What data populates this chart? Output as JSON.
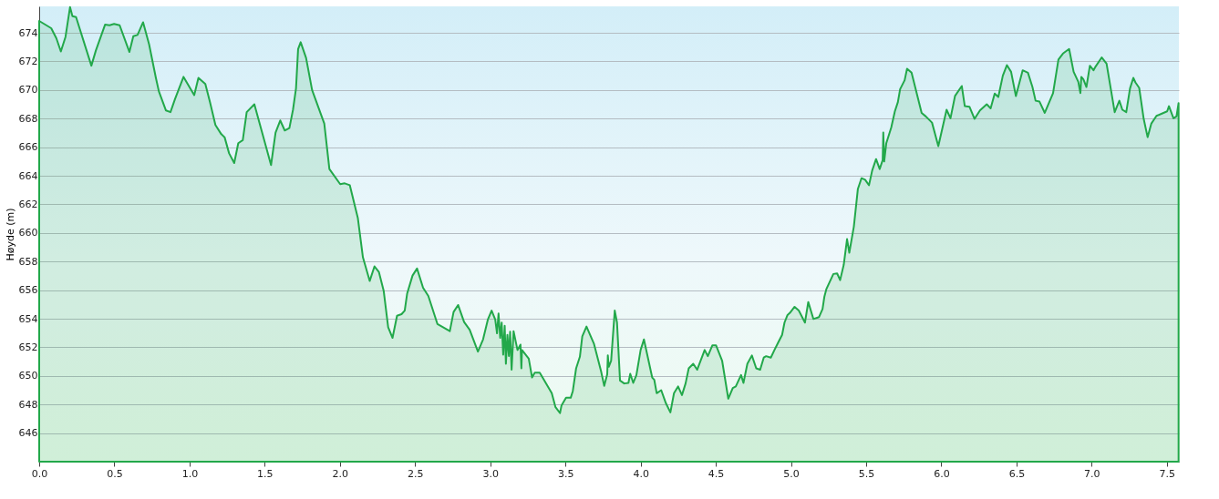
{
  "chart_data": {
    "type": "area",
    "ylabel": "Høyde (m)",
    "xlim": [
      0,
      7.58
    ],
    "ylim": [
      644,
      675.85
    ],
    "xticks": [
      {
        "value": 0,
        "label": "0.0"
      },
      {
        "value": 0.5,
        "label": "0.5"
      },
      {
        "value": 1,
        "label": "1.0"
      },
      {
        "value": 1.5,
        "label": "1.5"
      },
      {
        "value": 2,
        "label": "2.0"
      },
      {
        "value": 2.5,
        "label": "2.5"
      },
      {
        "value": 3,
        "label": "3.0"
      },
      {
        "value": 3.5,
        "label": "3.5"
      },
      {
        "value": 4,
        "label": "4.0"
      },
      {
        "value": 4.5,
        "label": "4.5"
      },
      {
        "value": 5,
        "label": "5.0"
      },
      {
        "value": 5.5,
        "label": "5.5"
      },
      {
        "value": 6,
        "label": "6.0"
      },
      {
        "value": 6.5,
        "label": "6.5"
      },
      {
        "value": 7,
        "label": "7.0"
      },
      {
        "value": 7.5,
        "label": "7.5"
      }
    ],
    "yticks": [
      646,
      648,
      650,
      652,
      654,
      656,
      658,
      660,
      662,
      664,
      666,
      668,
      670,
      672,
      674
    ],
    "grid": "y",
    "series": [
      {
        "color": "#22a84a",
        "x": [
          0,
          0.08,
          0.114,
          0.144,
          0.175,
          0.205,
          0.221,
          0.245,
          0.347,
          0.377,
          0.438,
          0.468,
          0.498,
          0.535,
          0.6,
          0.626,
          0.654,
          0.691,
          0.731,
          0.776,
          0.796,
          0.843,
          0.873,
          0.903,
          0.96,
          1.031,
          1.059,
          1.105,
          1.136,
          1.172,
          1.211,
          1.233,
          1.263,
          1.297,
          1.324,
          1.354,
          1.38,
          1.431,
          1.542,
          1.572,
          1.603,
          1.633,
          1.664,
          1.688,
          1.708,
          1.722,
          1.739,
          1.775,
          1.815,
          1.896,
          1.93,
          2.002,
          2.032,
          2.066,
          2.119,
          2.153,
          2.198,
          2.23,
          2.259,
          2.291,
          2.321,
          2.35,
          2.38,
          2.41,
          2.431,
          2.447,
          2.483,
          2.513,
          2.553,
          2.588,
          2.649,
          2.731,
          2.756,
          2.786,
          2.826,
          2.863,
          2.918,
          2.952,
          2.984,
          3.009,
          3.033,
          3.045,
          3.055,
          3.066,
          3.076,
          3.086,
          3.096,
          3.104,
          3.114,
          3.124,
          3.132,
          3.142,
          3.155,
          3.181,
          3.201,
          3.207,
          3.211,
          3.256,
          3.278,
          3.296,
          3.329,
          3.409,
          3.434,
          3.464,
          3.474,
          3.504,
          3.535,
          3.549,
          3.571,
          3.596,
          3.612,
          3.64,
          3.69,
          3.737,
          3.758,
          3.778,
          3.782,
          3.788,
          3.804,
          3.828,
          3.843,
          3.863,
          3.891,
          3.919,
          3.931,
          3.951,
          3.972,
          4.0,
          4.022,
          4.077,
          4.091,
          4.107,
          4.137,
          4.168,
          4.198,
          4.222,
          4.249,
          4.275,
          4.299,
          4.32,
          4.35,
          4.376,
          4.426,
          4.447,
          4.477,
          4.502,
          4.542,
          4.583,
          4.613,
          4.633,
          4.668,
          4.684,
          4.71,
          4.74,
          4.769,
          4.795,
          4.819,
          4.835,
          4.866,
          4.89,
          4.917,
          4.941,
          4.957,
          4.977,
          4.993,
          5.024,
          5.052,
          5.093,
          5.115,
          5.149,
          5.186,
          5.21,
          5.222,
          5.235,
          5.282,
          5.307,
          5.327,
          5.351,
          5.373,
          5.388,
          5.418,
          5.445,
          5.469,
          5.493,
          5.519,
          5.54,
          5.566,
          5.59,
          5.61,
          5.614,
          5.62,
          5.634,
          5.667,
          5.691,
          5.711,
          5.726,
          5.756,
          5.772,
          5.802,
          5.869,
          5.897,
          5.938,
          5.98,
          6.035,
          6.061,
          6.091,
          6.136,
          6.156,
          6.187,
          6.221,
          6.257,
          6.302,
          6.328,
          6.355,
          6.379,
          6.409,
          6.436,
          6.464,
          6.496,
          6.541,
          6.576,
          6.606,
          6.627,
          6.653,
          6.688,
          6.743,
          6.779,
          6.809,
          6.85,
          6.88,
          6.911,
          6.925,
          6.931,
          6.945,
          6.965,
          6.988,
          7.012,
          7.026,
          7.067,
          7.099,
          7.153,
          7.184,
          7.204,
          7.23,
          7.255,
          7.277,
          7.291,
          7.316,
          7.346,
          7.372,
          7.397,
          7.431,
          7.502,
          7.514,
          7.544,
          7.564,
          7.578
        ],
        "values": [
          674.83,
          674.32,
          673.62,
          672.7,
          673.72,
          675.8,
          675.17,
          675.1,
          671.7,
          672.77,
          674.57,
          674.53,
          674.62,
          674.53,
          672.66,
          673.76,
          673.85,
          674.74,
          673.19,
          670.85,
          669.9,
          668.57,
          668.45,
          669.36,
          670.92,
          669.64,
          670.85,
          670.42,
          669.15,
          667.55,
          666.91,
          666.7,
          665.57,
          664.89,
          666.28,
          666.49,
          668.45,
          669.0,
          664.75,
          667.02,
          667.87,
          667.17,
          667.34,
          668.62,
          670.11,
          672.87,
          673.34,
          672.24,
          670.0,
          667.66,
          664.47,
          663.41,
          663.47,
          663.34,
          661.06,
          658.3,
          656.64,
          657.66,
          657.28,
          655.96,
          653.4,
          652.66,
          654.21,
          654.32,
          654.57,
          655.75,
          657.02,
          657.51,
          656.17,
          655.59,
          653.62,
          653.13,
          654.47,
          654.96,
          653.77,
          653.23,
          651.7,
          652.55,
          653.94,
          654.57,
          653.94,
          652.98,
          654.37,
          652.66,
          653.73,
          651.49,
          653.51,
          650.85,
          652.87,
          651.39,
          653.09,
          650.43,
          653.13,
          651.81,
          652.19,
          650.53,
          651.81,
          651.21,
          649.89,
          650.22,
          650.22,
          648.79,
          647.81,
          647.4,
          647.94,
          648.47,
          648.47,
          648.94,
          650.53,
          651.34,
          652.77,
          653.45,
          652.24,
          650.32,
          649.3,
          650.11,
          651.43,
          650.64,
          651.07,
          654.57,
          653.73,
          649.68,
          649.47,
          649.51,
          650.15,
          649.51,
          650.06,
          651.81,
          652.55,
          649.89,
          649.72,
          648.79,
          649.0,
          648.09,
          647.45,
          648.79,
          649.26,
          648.66,
          649.47,
          650.53,
          650.85,
          650.43,
          651.81,
          651.38,
          652.13,
          652.13,
          651.07,
          648.41,
          649.15,
          649.26,
          650.06,
          649.51,
          650.85,
          651.43,
          650.53,
          650.43,
          651.28,
          651.38,
          651.28,
          651.81,
          652.38,
          652.87,
          653.73,
          654.26,
          654.41,
          654.83,
          654.57,
          653.73,
          655.17,
          653.98,
          654.11,
          654.68,
          655.53,
          656.06,
          657.13,
          657.17,
          656.7,
          657.77,
          659.57,
          658.62,
          660.43,
          663.08,
          663.83,
          663.72,
          663.34,
          664.36,
          665.17,
          664.47,
          665.1,
          667.02,
          665.0,
          666.28,
          667.38,
          668.51,
          669.15,
          670.06,
          670.68,
          671.49,
          671.21,
          668.4,
          668.15,
          667.72,
          666.07,
          668.62,
          668.02,
          669.58,
          670.28,
          668.87,
          668.83,
          667.98,
          668.57,
          669.0,
          668.72,
          669.75,
          669.51,
          671.0,
          671.74,
          671.27,
          669.58,
          671.38,
          671.21,
          670.21,
          669.25,
          669.19,
          668.4,
          669.78,
          672.13,
          672.55,
          672.87,
          671.27,
          670.57,
          669.78,
          670.92,
          670.74,
          670.21,
          671.7,
          671.38,
          671.64,
          672.28,
          671.85,
          668.45,
          669.25,
          668.62,
          668.45,
          670.11,
          670.85,
          670.53,
          670.15,
          667.98,
          666.7,
          667.66,
          668.19,
          668.51,
          668.87,
          668.02,
          668.15,
          669.08
        ]
      }
    ],
    "line_style": "solid",
    "marker": "none"
  }
}
